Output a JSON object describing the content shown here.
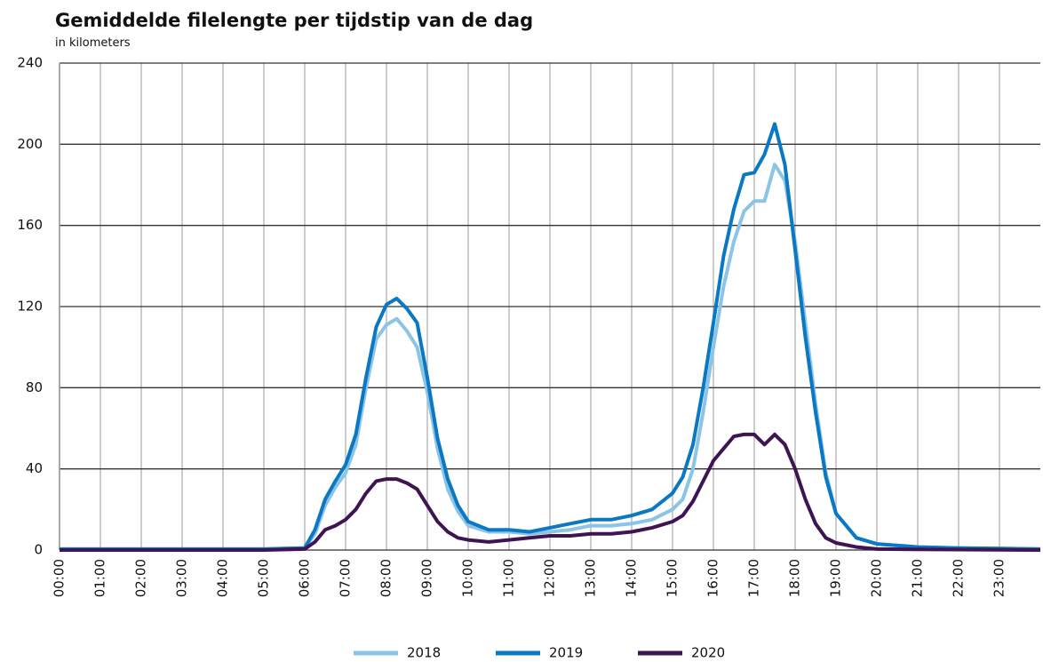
{
  "chart_data": {
    "type": "line",
    "title": "Gemiddelde filelengte per tijdstip van de dag",
    "subtitle": "in kilometers",
    "x": [
      0,
      5,
      6,
      6.25,
      6.5,
      6.75,
      7,
      7.25,
      7.5,
      7.75,
      8,
      8.25,
      8.5,
      8.75,
      9,
      9.25,
      9.5,
      9.75,
      10,
      10.5,
      11,
      11.5,
      12,
      12.5,
      13,
      13.5,
      14,
      14.5,
      15,
      15.25,
      15.5,
      15.75,
      16,
      16.25,
      16.5,
      16.75,
      17,
      17.25,
      17.5,
      17.75,
      18,
      18.25,
      18.5,
      18.75,
      19,
      19.5,
      20,
      21,
      22,
      23,
      24
    ],
    "series": [
      {
        "name": "2018",
        "color": "#8cc4e6",
        "values": [
          0.5,
          0.5,
          1,
          8,
          22,
          31,
          38,
          52,
          80,
          104,
          111,
          114,
          108,
          100,
          78,
          50,
          30,
          19,
          12,
          9,
          9,
          8,
          9,
          10,
          12,
          12,
          13,
          15,
          20,
          25,
          40,
          68,
          100,
          130,
          152,
          167,
          172,
          172,
          190,
          182,
          152,
          112,
          72,
          38,
          18,
          6,
          3,
          1.5,
          1,
          0.8,
          0.5
        ]
      },
      {
        "name": "2019",
        "color": "#0a78c2",
        "values": [
          0.5,
          0.5,
          1,
          10,
          25,
          34,
          42,
          57,
          85,
          110,
          121,
          124,
          119,
          112,
          85,
          55,
          35,
          22,
          14,
          10,
          10,
          9,
          11,
          13,
          15,
          15,
          17,
          20,
          28,
          36,
          52,
          80,
          112,
          145,
          168,
          185,
          186,
          195,
          210,
          190,
          148,
          105,
          68,
          36,
          18,
          6,
          3,
          1.5,
          1,
          0.8,
          0.5
        ]
      },
      {
        "name": "2020",
        "color": "#3f1452",
        "values": [
          0,
          0,
          0.5,
          4,
          10,
          12,
          15,
          20,
          28,
          34,
          35,
          35,
          33,
          30,
          22,
          14,
          9,
          6,
          5,
          4,
          5,
          6,
          7,
          7,
          8,
          8,
          9,
          11,
          14,
          17,
          24,
          34,
          44,
          50,
          56,
          57,
          57,
          52,
          57,
          52,
          40,
          25,
          13,
          6,
          3.5,
          1.5,
          0.5,
          0.3,
          0.2,
          0.1,
          0
        ]
      }
    ],
    "xlim": [
      0,
      24
    ],
    "xticks": [
      {
        "value": 0,
        "label": "00:00"
      },
      {
        "value": 1,
        "label": "01:00"
      },
      {
        "value": 2,
        "label": "02:00"
      },
      {
        "value": 3,
        "label": "03:00"
      },
      {
        "value": 4,
        "label": "04:00"
      },
      {
        "value": 5,
        "label": "05:00"
      },
      {
        "value": 6,
        "label": "06:00"
      },
      {
        "value": 7,
        "label": "07:00"
      },
      {
        "value": 8,
        "label": "08:00"
      },
      {
        "value": 9,
        "label": "09:00"
      },
      {
        "value": 10,
        "label": "10:00"
      },
      {
        "value": 11,
        "label": "11:00"
      },
      {
        "value": 12,
        "label": "12:00"
      },
      {
        "value": 13,
        "label": "13:00"
      },
      {
        "value": 14,
        "label": "14:00"
      },
      {
        "value": 15,
        "label": "15:00"
      },
      {
        "value": 16,
        "label": "16:00"
      },
      {
        "value": 17,
        "label": "17:00"
      },
      {
        "value": 18,
        "label": "18:00"
      },
      {
        "value": 19,
        "label": "19:00"
      },
      {
        "value": 20,
        "label": "20:00"
      },
      {
        "value": 21,
        "label": "21:00"
      },
      {
        "value": 22,
        "label": "22:00"
      },
      {
        "value": 23,
        "label": "23:00"
      }
    ],
    "ylim": [
      0,
      240
    ],
    "yticks": [
      0,
      40,
      80,
      120,
      160,
      200,
      240
    ],
    "grid": true,
    "legend": "bottom"
  }
}
